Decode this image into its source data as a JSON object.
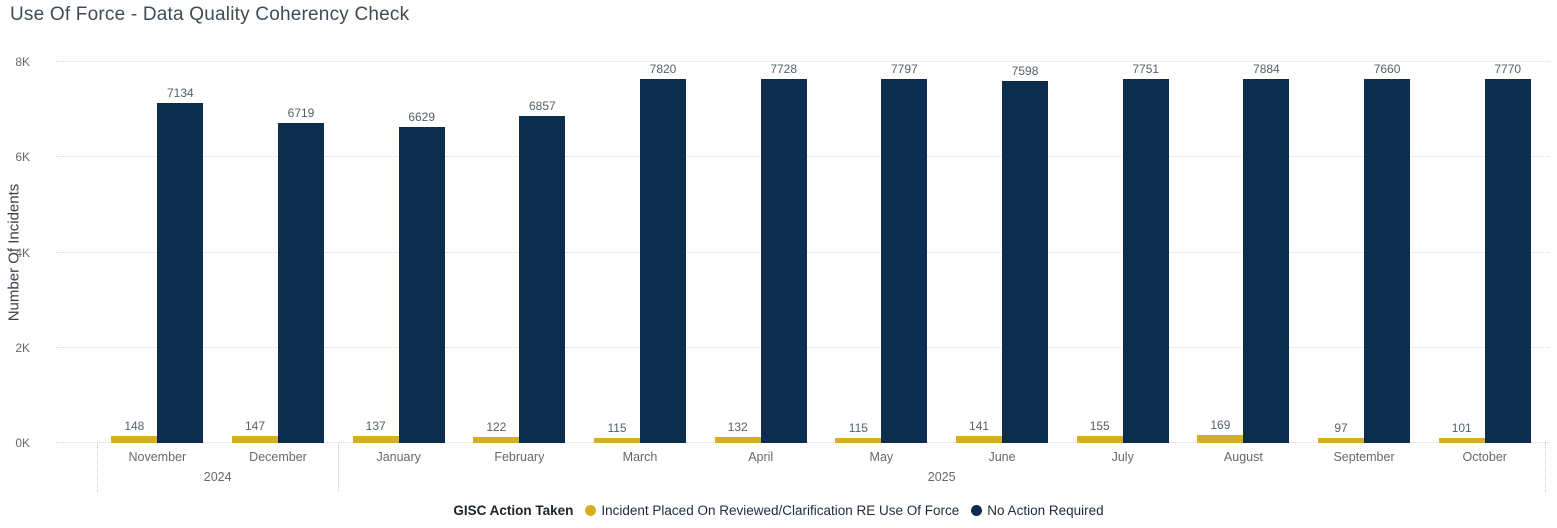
{
  "title": "Use Of Force - Data Quality Coherency Check",
  "y_axis": {
    "title": "Number Of Incidents"
  },
  "legend": {
    "title": "GISC Action Taken",
    "items": [
      {
        "label": "Incident Placed On Reviewed/Clarification RE Use Of Force",
        "color": "#d4af21"
      },
      {
        "label": "No Action Required",
        "color": "#0c2d4d"
      }
    ]
  },
  "colors": {
    "reviewed": "#d4af21",
    "no_action": "#0c2d4d",
    "gridline": "#d9d9d9",
    "title_text": "#414b55",
    "axis_text": "#65696e",
    "data_label_text": "#565f6a"
  },
  "chart_data": {
    "type": "bar",
    "title": "Use Of Force - Data Quality Coherency Check",
    "xlabel": "",
    "ylabel": "Number Of Incidents",
    "ylim": [
      0,
      8000
    ],
    "y_ticks": [
      "0K",
      "2K",
      "4K",
      "6K",
      "8K"
    ],
    "grid": "dotted-horizontal",
    "legend_position": "bottom-center",
    "categories": [
      "November",
      "December",
      "January",
      "February",
      "March",
      "April",
      "May",
      "June",
      "July",
      "August",
      "September",
      "October"
    ],
    "year_groups": [
      {
        "label": "2024",
        "months": 2
      },
      {
        "label": "2025",
        "months": 10
      }
    ],
    "series": [
      {
        "name": "Incident Placed On Reviewed/Clarification RE Use Of Force",
        "color": "#d4af21",
        "values": [
          148,
          147,
          137,
          122,
          115,
          132,
          115,
          141,
          155,
          169,
          97,
          101
        ]
      },
      {
        "name": "No Action Required",
        "color": "#0c2d4d",
        "values": [
          7134,
          6719,
          6629,
          6857,
          7820,
          7728,
          7797,
          7598,
          7751,
          7884,
          7660,
          7770
        ]
      }
    ]
  }
}
